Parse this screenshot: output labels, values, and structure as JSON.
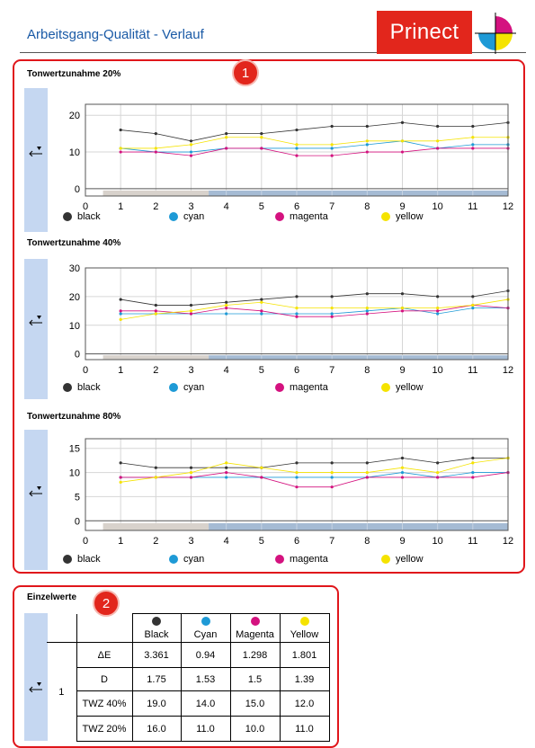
{
  "header": {
    "title": "Arbeitsgang-Qualität - Verlauf",
    "logo_text": "Prinect"
  },
  "badges": [
    "1",
    "2"
  ],
  "colors": {
    "black": "#333333",
    "cyan": "#1e9ad6",
    "magenta": "#d4127f",
    "yellow": "#f5e300",
    "accent": "#e2261c",
    "strip": "#c5d7f1"
  },
  "legend": [
    {
      "label": "black",
      "color": "#333333"
    },
    {
      "label": "cyan",
      "color": "#1e9ad6"
    },
    {
      "label": "magenta",
      "color": "#d4127f"
    },
    {
      "label": "yellow",
      "color": "#f5e300"
    }
  ],
  "chart_data": [
    {
      "type": "line",
      "title": "Tonwertzunahme 20%",
      "x": [
        1,
        2,
        3,
        4,
        5,
        6,
        7,
        8,
        9,
        10,
        11,
        12
      ],
      "xlim": [
        0,
        12
      ],
      "ylim": [
        -2,
        23
      ],
      "yticks": [
        0,
        10,
        20
      ],
      "xticks": [
        0,
        1,
        2,
        3,
        4,
        5,
        6,
        7,
        8,
        9,
        10,
        11,
        12
      ],
      "grid": true,
      "legend": "bottom",
      "series": [
        {
          "name": "black",
          "color": "#333333",
          "values": [
            16,
            15,
            13,
            15,
            15,
            16,
            17,
            17,
            18,
            17,
            17,
            18
          ]
        },
        {
          "name": "cyan",
          "color": "#1e9ad6",
          "values": [
            11,
            10,
            10,
            11,
            11,
            11,
            11,
            12,
            13,
            11,
            12,
            12
          ]
        },
        {
          "name": "magenta",
          "color": "#d4127f",
          "values": [
            10,
            10,
            9,
            11,
            11,
            9,
            9,
            10,
            10,
            11,
            11,
            11
          ]
        },
        {
          "name": "yellow",
          "color": "#f5e300",
          "values": [
            11,
            11,
            12,
            14,
            14,
            12,
            12,
            13,
            13,
            13,
            14,
            14
          ]
        }
      ]
    },
    {
      "type": "line",
      "title": "Tonwertzunahme 40%",
      "x": [
        1,
        2,
        3,
        4,
        5,
        6,
        7,
        8,
        9,
        10,
        11,
        12
      ],
      "xlim": [
        0,
        12
      ],
      "ylim": [
        -2,
        30
      ],
      "yticks": [
        0,
        10,
        20,
        30
      ],
      "xticks": [
        0,
        1,
        2,
        3,
        4,
        5,
        6,
        7,
        8,
        9,
        10,
        11,
        12
      ],
      "grid": true,
      "legend": "bottom",
      "series": [
        {
          "name": "black",
          "color": "#333333",
          "values": [
            19,
            17,
            17,
            18,
            19,
            20,
            20,
            21,
            21,
            20,
            20,
            22
          ]
        },
        {
          "name": "cyan",
          "color": "#1e9ad6",
          "values": [
            14,
            14,
            14,
            14,
            14,
            14,
            14,
            15,
            16,
            14,
            16,
            16
          ]
        },
        {
          "name": "magenta",
          "color": "#d4127f",
          "values": [
            15,
            15,
            14,
            16,
            15,
            13,
            13,
            14,
            15,
            15,
            17,
            16
          ]
        },
        {
          "name": "yellow",
          "color": "#f5e300",
          "values": [
            12,
            14,
            15,
            17,
            18,
            16,
            16,
            16,
            16,
            16,
            17,
            19
          ]
        }
      ]
    },
    {
      "type": "line",
      "title": "Tonwertzunahme 80%",
      "x": [
        1,
        2,
        3,
        4,
        5,
        6,
        7,
        8,
        9,
        10,
        11,
        12
      ],
      "xlim": [
        0,
        12
      ],
      "ylim": [
        -2,
        17
      ],
      "yticks": [
        0,
        5,
        10,
        15
      ],
      "xticks": [
        0,
        1,
        2,
        3,
        4,
        5,
        6,
        7,
        8,
        9,
        10,
        11,
        12
      ],
      "grid": true,
      "legend": "bottom",
      "series": [
        {
          "name": "black",
          "color": "#333333",
          "values": [
            12,
            11,
            11,
            11,
            11,
            12,
            12,
            12,
            13,
            12,
            13,
            13
          ]
        },
        {
          "name": "cyan",
          "color": "#1e9ad6",
          "values": [
            9,
            9,
            9,
            9,
            9,
            9,
            9,
            9,
            10,
            9,
            10,
            10
          ]
        },
        {
          "name": "magenta",
          "color": "#d4127f",
          "values": [
            9,
            9,
            9,
            10,
            9,
            7,
            7,
            9,
            9,
            9,
            9,
            10
          ]
        },
        {
          "name": "yellow",
          "color": "#f5e300",
          "values": [
            8,
            9,
            10,
            12,
            11,
            10,
            10,
            10,
            11,
            10,
            12,
            13
          ]
        }
      ]
    }
  ],
  "table": {
    "title": "Einzelwerte",
    "group": "1",
    "columns": [
      {
        "label": "Black",
        "color": "#333333"
      },
      {
        "label": "Cyan",
        "color": "#1e9ad6"
      },
      {
        "label": "Magenta",
        "color": "#d4127f"
      },
      {
        "label": "Yellow",
        "color": "#f5e300"
      }
    ],
    "rows": [
      {
        "label": "ΔE",
        "values": [
          "3.361",
          "0.94",
          "1.298",
          "1.801"
        ]
      },
      {
        "label": "D",
        "values": [
          "1.75",
          "1.53",
          "1.5",
          "1.39"
        ]
      },
      {
        "label": "TWZ 40%",
        "values": [
          "19.0",
          "14.0",
          "15.0",
          "12.0"
        ]
      },
      {
        "label": "TWZ 20%",
        "values": [
          "16.0",
          "11.0",
          "10.0",
          "11.0"
        ]
      }
    ]
  }
}
